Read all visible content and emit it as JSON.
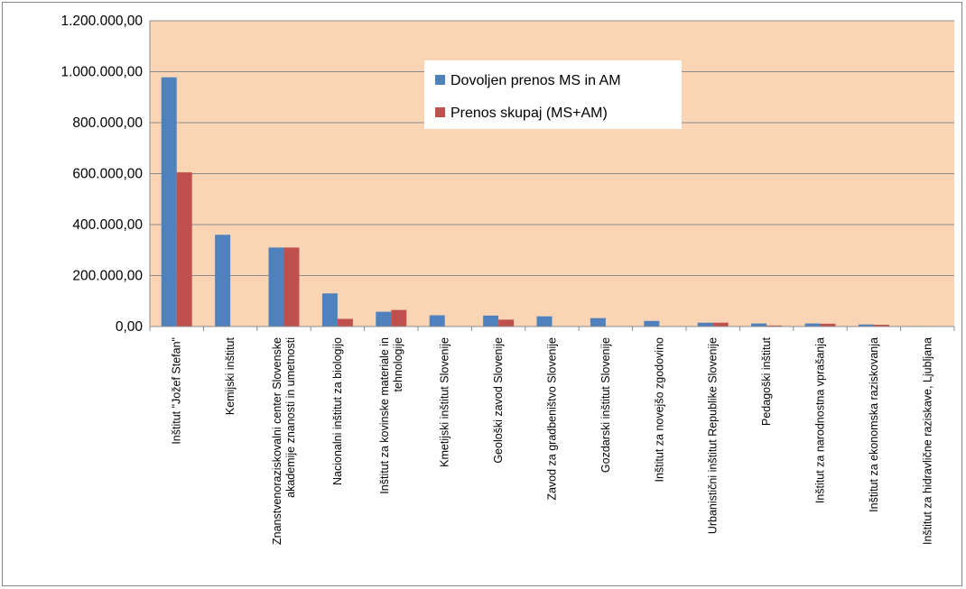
{
  "chart_data": {
    "type": "bar",
    "title": "",
    "xlabel": "",
    "ylabel": "",
    "ylim": [
      0,
      1200000
    ],
    "yticks": [
      "0,00",
      "200.000,00",
      "400.000,00",
      "600.000,00",
      "800.000,00",
      "1.000.000,00",
      "1.200.000,00"
    ],
    "grid": true,
    "legend_position": "top-center",
    "plot_background": "#fad5b5",
    "categories": [
      [
        "Inštitut \"Jožef Stefan\""
      ],
      [
        "Kemijski inštitut"
      ],
      [
        "Znanstvenoraziskovalni center Slovenske",
        "akademije znanosti in umetnosti"
      ],
      [
        "Nacionalni inštitut za biologijo"
      ],
      [
        "Inštitut za kovinske materiale in",
        "tehnologije"
      ],
      [
        "Kmetijski inštitut Slovenije"
      ],
      [
        "Geološki zavod Slovenije"
      ],
      [
        "Zavod za gradbeništvo Slovenije"
      ],
      [
        "Gozdarski inštitut Slovenije"
      ],
      [
        "Inštitut za novejšo zgodovino"
      ],
      [
        "Urbanistični inštitut Republike Slovenije"
      ],
      [
        "Pedagoški inštitut"
      ],
      [
        "Inštitut za narodnostna vprašanja"
      ],
      [
        "Inštitut za ekonomska raziskovanja"
      ],
      [
        "Inštitut za hidravlične raziskave, Ljubljana"
      ]
    ],
    "series": [
      {
        "name": "Dovoljen prenos MS in AM",
        "color": "#4f81bd",
        "values": [
          978000,
          360000,
          310000,
          130000,
          58000,
          44000,
          43000,
          40000,
          33000,
          22000,
          15000,
          12000,
          12000,
          8000,
          2000
        ]
      },
      {
        "name": "Prenos skupaj (MS+AM)",
        "color": "#c0504d",
        "values": [
          605000,
          0,
          310000,
          30000,
          65000,
          0,
          27000,
          0,
          0,
          0,
          15000,
          4000,
          11000,
          7000,
          0
        ]
      }
    ]
  }
}
